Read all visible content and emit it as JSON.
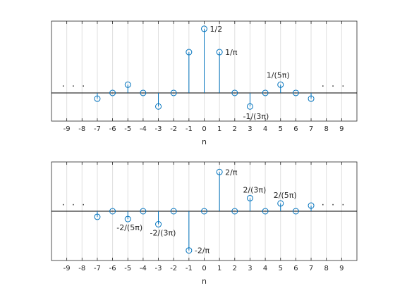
{
  "chart_data": [
    {
      "type": "stem",
      "xlabel": "n",
      "xlim": [
        -10,
        10
      ],
      "ylim": [
        -0.22,
        0.56
      ],
      "xticks": [
        -9,
        -8,
        -7,
        -6,
        -5,
        -4,
        -3,
        -2,
        -1,
        0,
        1,
        2,
        3,
        4,
        5,
        6,
        7,
        8,
        9
      ],
      "xtick_labels": [
        "-9",
        "-8",
        "-7",
        "-6",
        "-5",
        "-4",
        "-3",
        "-2",
        "-1",
        "0",
        "1",
        "2",
        "3",
        "4",
        "5",
        "6",
        "7",
        "8",
        "9"
      ],
      "grid_x": true,
      "baseline": 0,
      "x": [
        -7,
        -6,
        -5,
        -4,
        -3,
        -2,
        -1,
        0,
        1,
        2,
        3,
        4,
        5,
        6,
        7
      ],
      "y": [
        -0.045,
        0,
        0.064,
        0,
        -0.106,
        0,
        0.318,
        0.5,
        0.318,
        0,
        -0.106,
        0,
        0.064,
        0,
        -0.045
      ],
      "color": "#0072BD",
      "annotations": [
        {
          "text": "1/2",
          "x": 0,
          "y": 0.5
        },
        {
          "text": "1/π",
          "x": 1,
          "y": 0.318
        },
        {
          "text": "1/(5π)",
          "x": 5,
          "y": 0.064
        },
        {
          "text": "-1/(3π)",
          "x": 3,
          "y": -0.106
        }
      ],
      "ellipsis": {
        "text": ". . .",
        "left_x": -8.5,
        "right_x": 8.5,
        "y": 0.05
      }
    },
    {
      "type": "stem",
      "xlabel": "n",
      "xlim": [
        -10,
        10
      ],
      "ylim": [
        -0.8,
        0.8
      ],
      "xticks": [
        -9,
        -8,
        -7,
        -6,
        -5,
        -4,
        -3,
        -2,
        -1,
        0,
        1,
        2,
        3,
        4,
        5,
        6,
        7,
        8,
        9
      ],
      "xtick_labels": [
        "-9",
        "-8",
        "-7",
        "-6",
        "-5",
        "-4",
        "-3",
        "-2",
        "-1",
        "0",
        "1",
        "2",
        "3",
        "4",
        "5",
        "6",
        "7",
        "8",
        "9"
      ],
      "grid_x": true,
      "baseline": 0,
      "x": [
        -7,
        -6,
        -5,
        -4,
        -3,
        -2,
        -1,
        0,
        1,
        2,
        3,
        4,
        5,
        6,
        7
      ],
      "y": [
        -0.091,
        0,
        -0.127,
        0,
        -0.212,
        0,
        -0.637,
        0,
        0.637,
        0,
        0.212,
        0,
        0.127,
        0,
        0.091
      ],
      "color": "#0072BD",
      "annotations": [
        {
          "text": "2/π",
          "x": 1,
          "y": 0.637
        },
        {
          "text": "2/(3π)",
          "x": 3,
          "y": 0.212
        },
        {
          "text": "2/(5π)",
          "x": 5,
          "y": 0.127
        },
        {
          "text": "-2/(5π)",
          "x": -5,
          "y": -0.127
        },
        {
          "text": "-2/(3π)",
          "x": -3,
          "y": -0.212
        },
        {
          "text": "-2/π",
          "x": -1,
          "y": -0.637
        }
      ],
      "ellipsis": {
        "text": ". . .",
        "left_x": -8.5,
        "right_x": 8.5,
        "y": 0.1
      }
    }
  ]
}
